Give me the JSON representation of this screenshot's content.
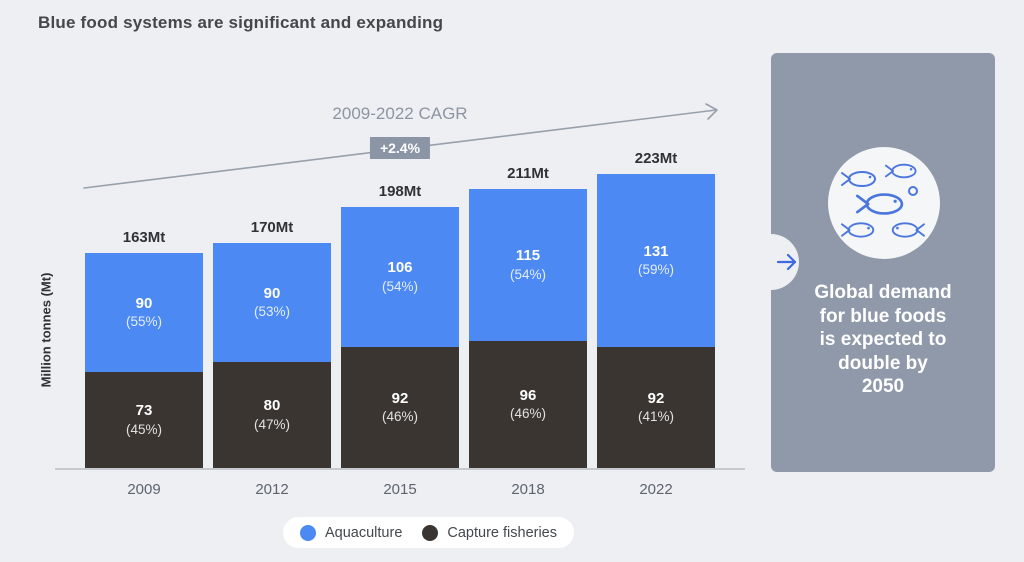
{
  "page": {
    "title": "Blue food systems are significant and expanding"
  },
  "chart_data": {
    "type": "bar",
    "stacked": true,
    "title": "Blue food systems are significant and expanding",
    "ylabel": "Million tonnes (Mt)",
    "xlabel": "",
    "categories": [
      "2009",
      "2012",
      "2015",
      "2018",
      "2022"
    ],
    "totals": [
      "163Mt",
      "170Mt",
      "198Mt",
      "211Mt",
      "223Mt"
    ],
    "series": [
      {
        "name": "Aquaculture",
        "color": "#4c89f2",
        "values": [
          90,
          90,
          106,
          115,
          131
        ],
        "percent_labels": [
          "(55%)",
          "(53%)",
          "(54%)",
          "(54%)",
          "(59%)"
        ]
      },
      {
        "name": "Capture fisheries",
        "color": "#3a3531",
        "values": [
          73,
          80,
          92,
          96,
          92
        ],
        "percent_labels": [
          "(45%)",
          "(47%)",
          "(46%)",
          "(46%)",
          "(41%)"
        ]
      }
    ],
    "annotation": {
      "label": "2009-2022 CAGR",
      "badge": "+2.4%"
    },
    "ylim": [
      0,
      230
    ],
    "grid": false,
    "legend_position": "bottom"
  },
  "legend": {
    "items": [
      {
        "label": "Aquaculture",
        "color": "#4c89f2"
      },
      {
        "label": "Capture fisheries",
        "color": "#3a3531"
      }
    ]
  },
  "panel": {
    "icon": "school-of-fish-icon",
    "bg": "#8f99aa",
    "text_lines": [
      "Global demand",
      "for blue foods",
      "is expected to",
      "double by",
      "2050"
    ]
  }
}
